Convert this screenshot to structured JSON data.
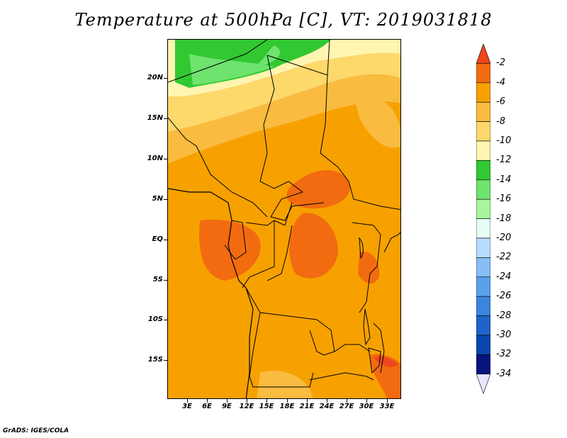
{
  "title": "Temperature at 500hPa [C], VT: 2019031818",
  "credit": "GrADS: IGES/COLA",
  "map": {
    "lat_labels": [
      "20N",
      "15N",
      "10N",
      "5N",
      "EQ",
      "5S",
      "10S",
      "15S"
    ],
    "lon_labels": [
      "3E",
      "6E",
      "9E",
      "12E",
      "15E",
      "18E",
      "21E",
      "24E",
      "27E",
      "30E",
      "33E"
    ]
  },
  "legend": {
    "labels": [
      "-2",
      "-4",
      "-6",
      "-8",
      "-10",
      "-12",
      "-14",
      "-16",
      "-18",
      "-20",
      "-22",
      "-24",
      "-26",
      "-28",
      "-30",
      "-32",
      "-34"
    ],
    "colors": [
      "#f0461e",
      "#f26b10",
      "#f7a100",
      "#f9bb40",
      "#fdd86b",
      "#fff5b0",
      "#32c832",
      "#6ee36e",
      "#a8f5a0",
      "#e6fff6",
      "#b8dcff",
      "#87bef5",
      "#5aa0ea",
      "#3c85de",
      "#1e64c8",
      "#0a46ad",
      "#07147d"
    ],
    "low_arrow_color": "#e6e6ff"
  }
}
